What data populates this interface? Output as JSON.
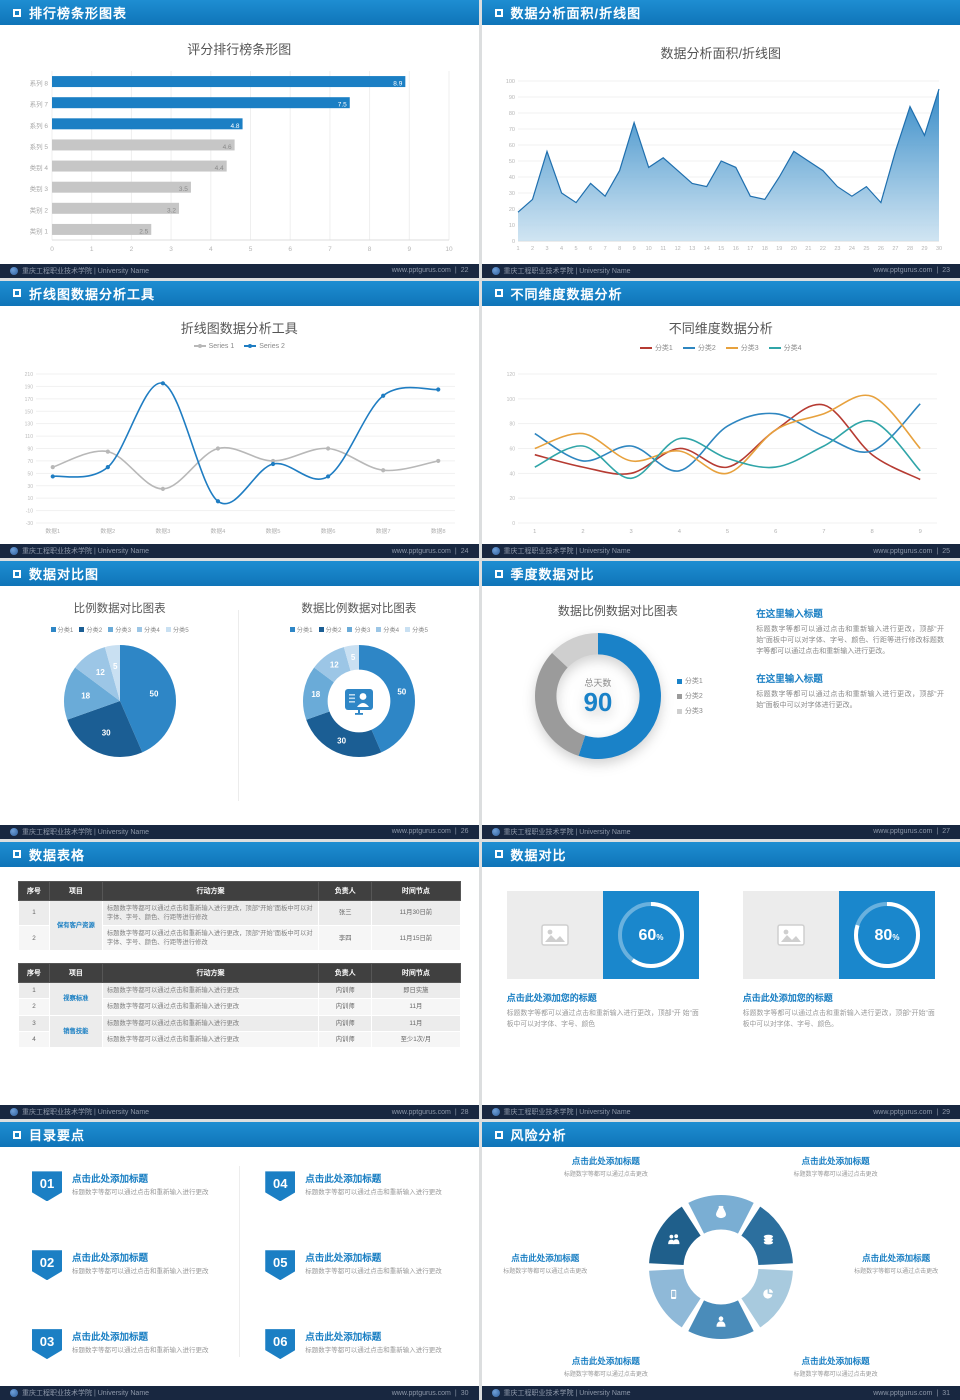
{
  "accent": "#1a7fc3",
  "footer": {
    "school": "重庆工程职业技术学院 | University Name",
    "site": "www.pptgurus.com",
    "sep": "|"
  },
  "slides": [
    {
      "title": "排行榜条形图表",
      "page": "22",
      "chart": {
        "type": "barh",
        "title": "评分排行榜条形图",
        "categories": [
          "系列 8",
          "系列 7",
          "系列 6",
          "系列 5",
          "类别 4",
          "类别 3",
          "类别 2",
          "类别 1"
        ],
        "values": [
          8.9,
          7.5,
          4.8,
          4.6,
          4.4,
          3.5,
          3.2,
          2.5
        ],
        "highlight": [
          true,
          true,
          true,
          false,
          false,
          false,
          false,
          false
        ],
        "xmax": 10,
        "xticks": [
          0,
          1,
          2,
          3,
          4,
          5,
          6,
          7,
          8,
          9,
          10
        ],
        "bar_color": "#1b7fc4",
        "muted_color": "#c6c6c6"
      }
    },
    {
      "title": "数据分析面积/折线图",
      "page": "23",
      "chart": {
        "type": "area",
        "title": "数据分析面积/折线图",
        "values": [
          18,
          26,
          56,
          30,
          24,
          36,
          28,
          44,
          74,
          46,
          52,
          44,
          36,
          34,
          50,
          46,
          28,
          26,
          40,
          56,
          50,
          44,
          34,
          28,
          34,
          24,
          56,
          84,
          66,
          95
        ],
        "ymax": 100,
        "ystep": 10,
        "fill_top": "#2a84c4",
        "fill_bottom": "#c8e0f0",
        "stroke": "#1f6fae"
      }
    },
    {
      "title": "折线图数据分析工具",
      "page": "24",
      "chart": {
        "type": "lines",
        "title": "折线图数据分析工具",
        "categories": [
          "数据1",
          "数据2",
          "数据3",
          "数据4",
          "数据5",
          "数据6",
          "数据7",
          "数据8"
        ],
        "ymin": -30,
        "ymax": 210,
        "ystep": 20,
        "markers": true,
        "smooth": true,
        "series": [
          {
            "name": "Series 1",
            "color": "#b8b8b8",
            "values": [
              60,
              85,
              25,
              90,
              70,
              90,
              55,
              70
            ]
          },
          {
            "name": "Series 2",
            "color": "#1f7dc2",
            "values": [
              45,
              60,
              195,
              5,
              65,
              45,
              175,
              185
            ]
          }
        ]
      }
    },
    {
      "title": "不同维度数据分析",
      "page": "25",
      "chart": {
        "type": "lines",
        "title": "不同维度数据分析",
        "categories": [
          "1",
          "2",
          "3",
          "4",
          "5",
          "6",
          "7",
          "8",
          "9"
        ],
        "ymin": 0,
        "ymax": 120,
        "ystep": 20,
        "markers": false,
        "smooth": true,
        "series": [
          {
            "name": "分类1",
            "color": "#b63b32",
            "values": [
              55,
              45,
              40,
              60,
              45,
              75,
              95,
              55,
              35
            ]
          },
          {
            "name": "分类2",
            "color": "#2e86c0",
            "values": [
              72,
              50,
              62,
              42,
              78,
              88,
              70,
              58,
              96
            ]
          },
          {
            "name": "分类3",
            "color": "#e7a13d",
            "values": [
              60,
              72,
              50,
              58,
              40,
              75,
              88,
              102,
              60
            ]
          },
          {
            "name": "分类4",
            "color": "#30a5a8",
            "values": [
              45,
              62,
              36,
              68,
              52,
              45,
              62,
              82,
              42
            ]
          }
        ]
      }
    },
    {
      "title": "数据对比图",
      "page": "26",
      "left": {
        "title": "比例数据对比图表",
        "chart": {
          "type": "pie",
          "slices": [
            {
              "name": "分类1",
              "value": 50,
              "color": "#2e86c6"
            },
            {
              "name": "分类2",
              "value": 30,
              "color": "#1b5e94"
            },
            {
              "name": "分类3",
              "value": 18,
              "color": "#6aabd8"
            },
            {
              "name": "分类4",
              "value": 12,
              "color": "#9cc6e6"
            },
            {
              "name": "分类5",
              "value": 5,
              "color": "#c9e0f2"
            }
          ]
        }
      },
      "right": {
        "title": "数据比例数据对比图表",
        "chart": {
          "type": "pie",
          "donut": true,
          "hole": 0.56,
          "center_icon": "presenter-icon",
          "slices": [
            {
              "name": "分类1",
              "value": 50,
              "color": "#2e86c6"
            },
            {
              "name": "分类2",
              "value": 30,
              "color": "#1b5e94"
            },
            {
              "name": "分类3",
              "value": 18,
              "color": "#6aabd8"
            },
            {
              "name": "分类4",
              "value": 12,
              "color": "#9cc6e6"
            },
            {
              "name": "分类5",
              "value": 5,
              "color": "#c9e0f2"
            }
          ]
        }
      }
    },
    {
      "title": "季度数据对比",
      "page": "27",
      "chart_title": "数据比例数据对比图表",
      "chart": {
        "type": "pie",
        "donut": true,
        "hole": 0.66,
        "hide_labels": true,
        "slices": [
          {
            "name": "分类1",
            "value": 55,
            "color": "#1a82c8"
          },
          {
            "name": "分类2",
            "value": 32,
            "color": "#9b9b9b"
          },
          {
            "name": "分类3",
            "value": 13,
            "color": "#cfcfcf"
          }
        ]
      },
      "center": {
        "label": "总天数",
        "value": "90"
      },
      "blocks": [
        {
          "heading": "在这里输入标题",
          "body": "标题数字等都可以通过点击和重新输入进行更改，顶部“开始”面板中可以对字体、字号、颜色、行距等进行修改标题数字等都可以通过点击和重新输入进行更改。"
        },
        {
          "heading": "在这里输入标题",
          "body": "标题数字等都可以通过点击和重新输入进行更改，顶部“开始”面板中可以对字体进行更改。"
        }
      ]
    },
    {
      "title": "数据表格",
      "page": "28",
      "table1": {
        "headers": [
          "序号",
          "项目",
          "行动方案",
          "负责人",
          "时间节点"
        ],
        "group": "保有客户资源",
        "rows": [
          {
            "no": "1",
            "plan": "标题数字等都可以通过点击和重新输入进行更改，顶部“开始”面板中可以对字体、字号、颜色、行距等进行修改",
            "owner": "张三",
            "time": "11月30日前"
          },
          {
            "no": "2",
            "plan": "标题数字等都可以通过点击和重新输入进行更改，顶部“开始”面板中可以对字体、字号、颜色、行距等进行修改",
            "owner": "李四",
            "time": "11月15日前"
          }
        ]
      },
      "table2": {
        "headers": [
          "序号",
          "项目",
          "行动方案",
          "负责人",
          "时间节点"
        ],
        "groups": [
          "视察标准",
          "销售技能"
        ],
        "rows": [
          {
            "no": "1",
            "plan": "标题数字等都可以通过点击和重新输入进行更改",
            "owner": "内训师",
            "time": "即日实施"
          },
          {
            "no": "2",
            "plan": "标题数字等都可以通过点击和重新输入进行更改",
            "owner": "内训师",
            "time": "11月"
          },
          {
            "no": "3",
            "plan": "标题数字等都可以通过点击和重新输入进行更改",
            "owner": "内训师",
            "time": "11月"
          },
          {
            "no": "4",
            "plan": "标题数字等都可以通过点击和重新输入进行更改",
            "owner": "内训师",
            "time": "至少1次/月"
          }
        ]
      }
    },
    {
      "title": "数据对比",
      "page": "29",
      "cards": [
        {
          "icon": "image-icon",
          "ring": {
            "type": "ring",
            "percent": 60
          },
          "heading": "点击此处添加您的标题",
          "body": "标题数字等都可以通过点击和重新输入进行更改，顶部“开 始”面板中可以对字体、字号、颜色"
        },
        {
          "icon": "image-icon",
          "ring": {
            "type": "ring",
            "percent": 80
          },
          "heading": "点击此处添加您的标题",
          "body": "标题数字等都可以通过点击和重新输入进行更改，顶部“开始”面板中可以对字体、字号、颜色。"
        }
      ]
    },
    {
      "title": "目录要点",
      "page": "30",
      "items": [
        {
          "num": "01",
          "heading": "点击此处添加标题",
          "body": "标题数字等都可以通过点击和重新输入进行更改"
        },
        {
          "num": "02",
          "heading": "点击此处添加标题",
          "body": "标题数字等都可以通过点击和重新输入进行更改"
        },
        {
          "num": "03",
          "heading": "点击此处添加标题",
          "body": "标题数字等都可以通过点击和重新输入进行更改"
        },
        {
          "num": "04",
          "heading": "点击此处添加标题",
          "body": "标题数字等都可以通过点击和重新输入进行更改"
        },
        {
          "num": "05",
          "heading": "点击此处添加标题",
          "body": "标题数字等都可以通过点击和重新输入进行更改"
        },
        {
          "num": "06",
          "heading": "点击此处添加标题",
          "body": "标题数字等都可以通过点击和重新输入进行更改"
        }
      ]
    },
    {
      "title": "风险分析",
      "page": "31",
      "wheel": {
        "type": "wheel",
        "petals": [
          {
            "icon": "moneybag-icon",
            "color": "#7aaed3"
          },
          {
            "icon": "coins-icon",
            "color": "#2c6f9e"
          },
          {
            "icon": "piechart-icon",
            "color": "#a8cade"
          },
          {
            "icon": "person-icon",
            "color": "#4a8cba"
          },
          {
            "icon": "phone-icon",
            "color": "#8fb9d8"
          },
          {
            "icon": "people-icon",
            "color": "#1f5f8b"
          }
        ]
      },
      "items": [
        {
          "heading": "点击此处添加标题",
          "body": "标题数字等都可以通过点击更改"
        },
        {
          "heading": "点击此处添加标题",
          "body": "标题数字等都可以通过点击更改"
        },
        {
          "heading": "点击此处添加标题",
          "body": "标题数字等都可以通过点击更改"
        },
        {
          "heading": "点击此处添加标题",
          "body": "标题数字等都可以通过点击更改"
        },
        {
          "heading": "点击此处添加标题",
          "body": "标题数字等都可以通过点击更改"
        },
        {
          "heading": "点击此处添加标题",
          "body": "标题数字等都可以通过点击更改"
        }
      ]
    }
  ]
}
